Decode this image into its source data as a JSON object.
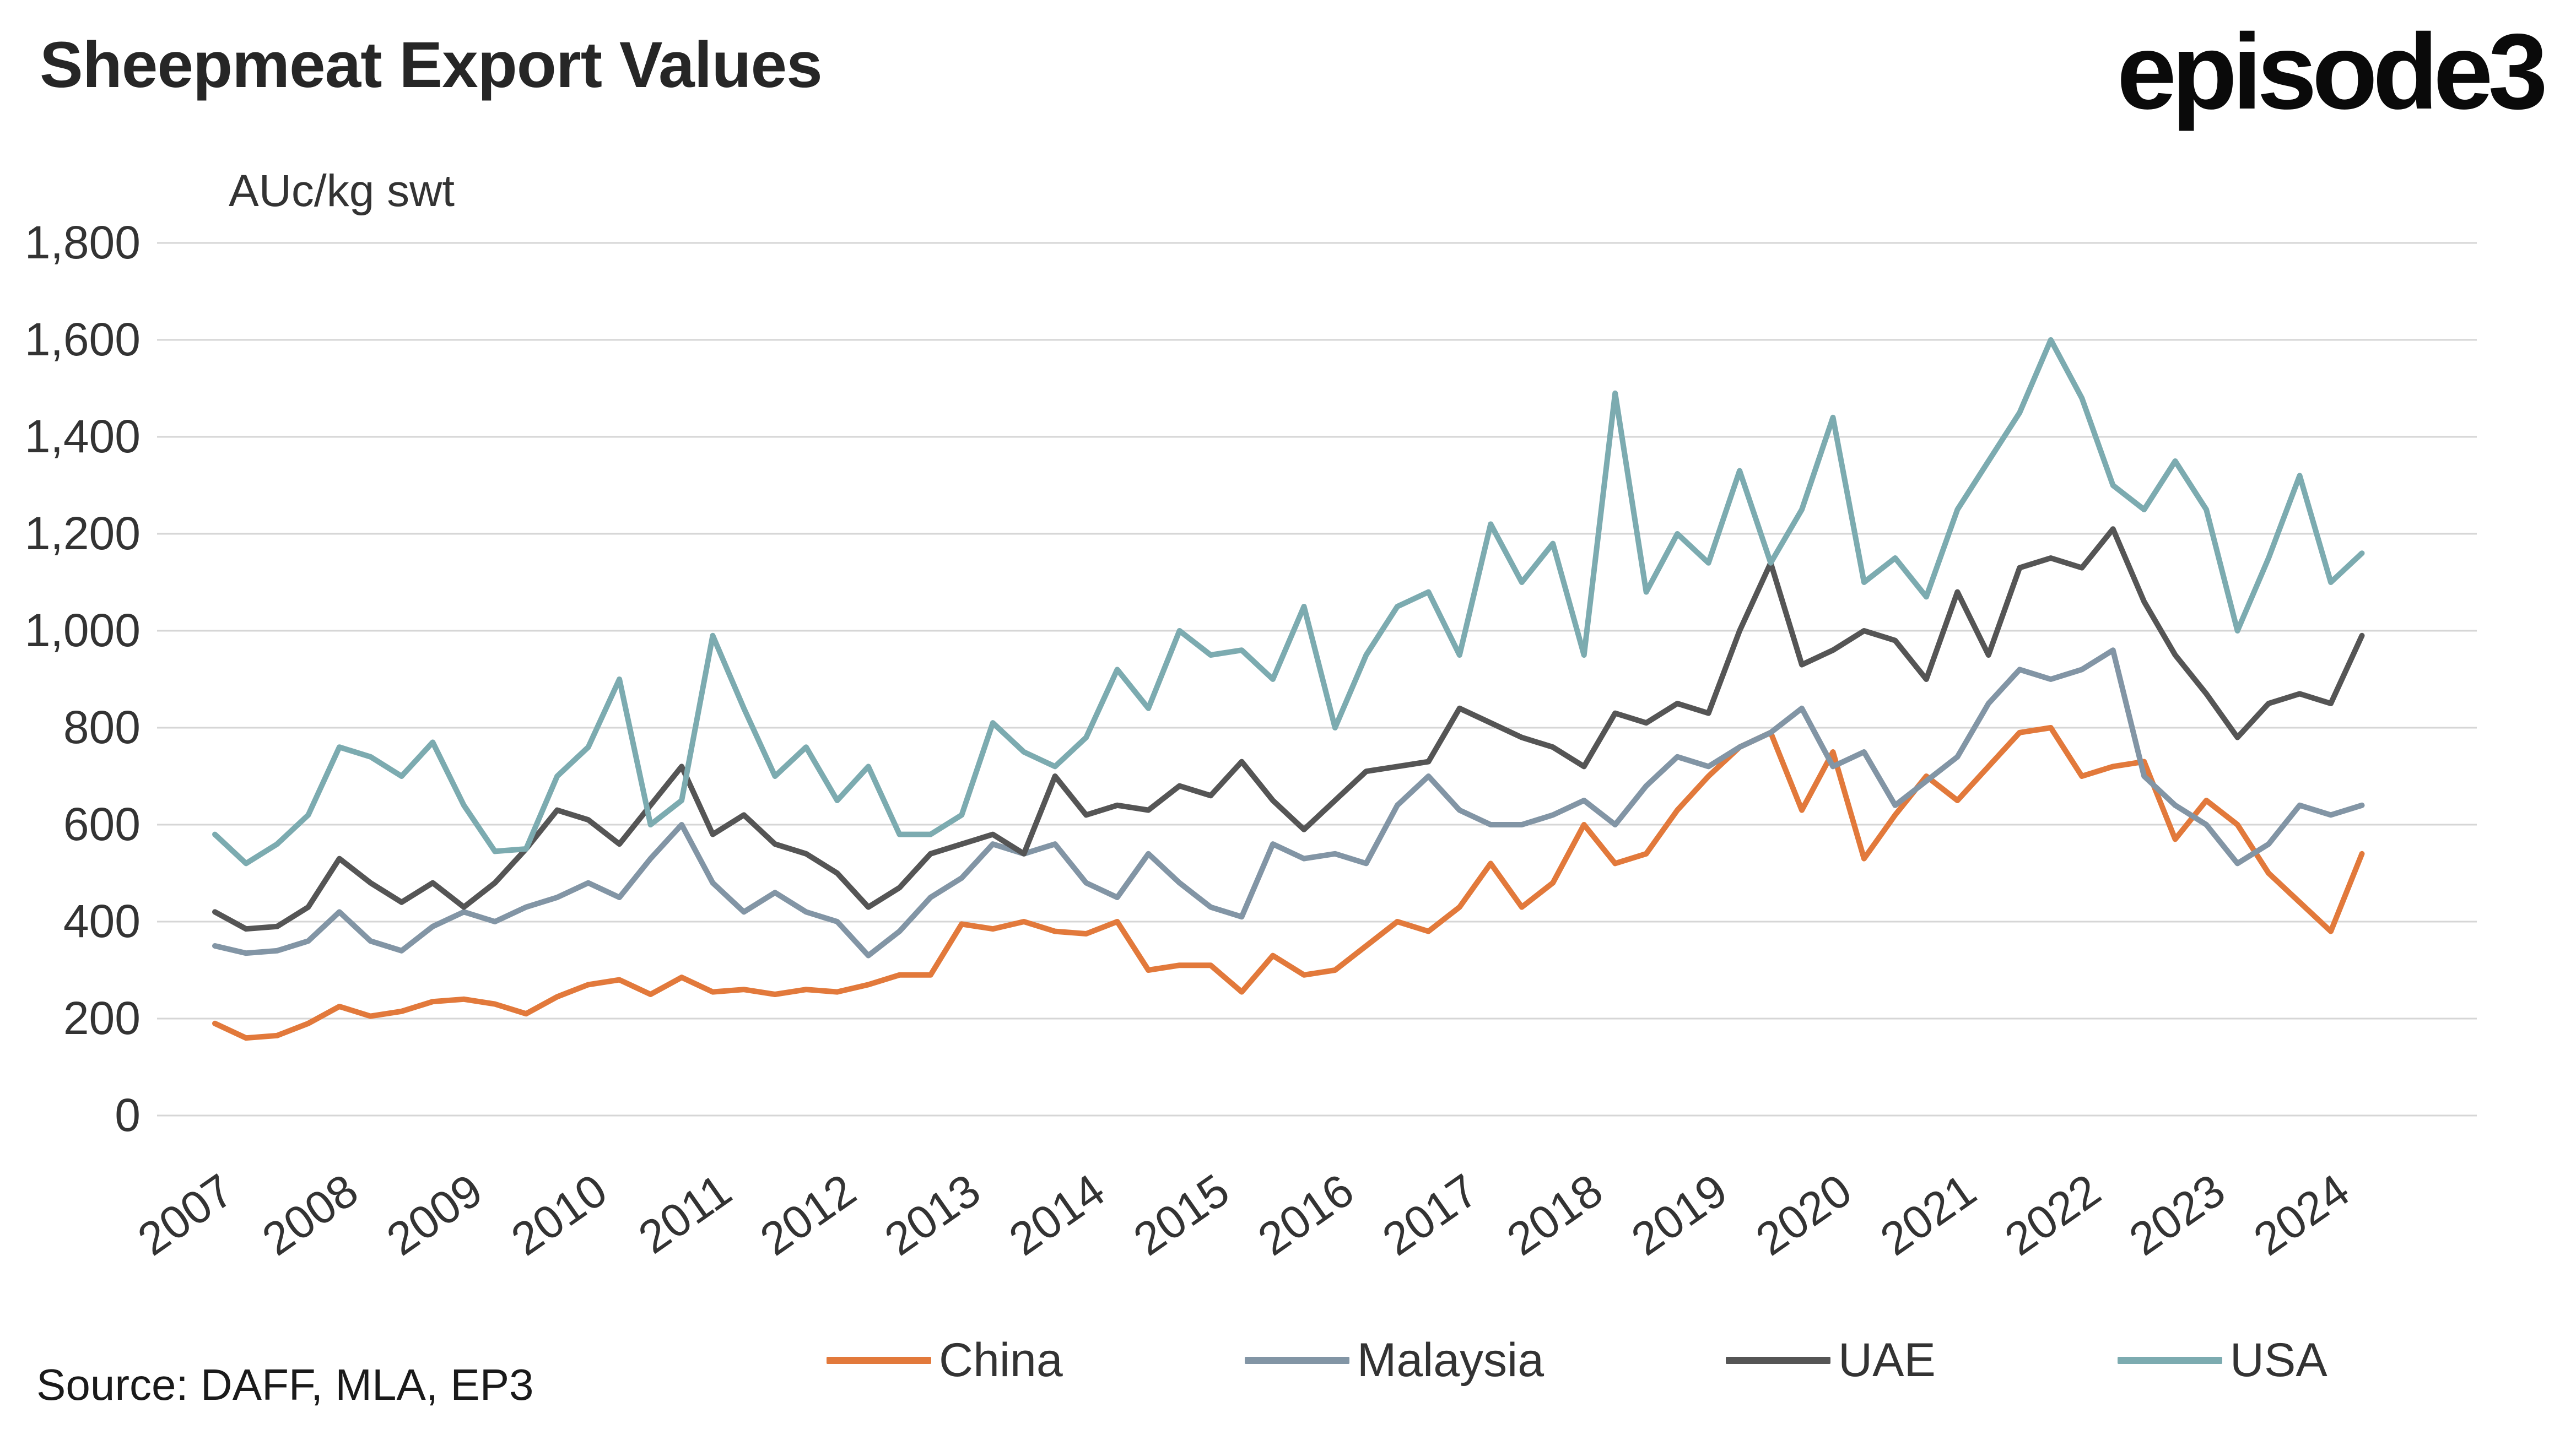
{
  "header": {
    "title": "Sheepmeat Export Values",
    "logo_text": "episode3"
  },
  "footer": {
    "source": "Source: DAFF, MLA, EP3"
  },
  "chart_data": {
    "type": "line",
    "title": "Sheepmeat Export Values",
    "xlabel": "",
    "ylabel": "AUc/kg swt",
    "ylim": [
      0,
      1800
    ],
    "grid": "horizontal",
    "legend_position": "bottom",
    "grid_color": "#d6d6d6",
    "y_ticks": [
      0,
      200,
      400,
      600,
      800,
      1000,
      1200,
      1400,
      1600,
      1800
    ],
    "y_tick_labels": [
      "0",
      "200",
      "400",
      "600",
      "800",
      "1,000",
      "1,200",
      "1,400",
      "1,600",
      "1,800"
    ],
    "x_ticks": [
      2007,
      2008,
      2009,
      2010,
      2011,
      2012,
      2013,
      2014,
      2015,
      2016,
      2017,
      2018,
      2019,
      2020,
      2021,
      2022,
      2023,
      2024
    ],
    "x": [
      2007,
      2007.25,
      2007.5,
      2007.75,
      2008,
      2008.25,
      2008.5,
      2008.75,
      2009,
      2009.25,
      2009.5,
      2009.75,
      2010,
      2010.25,
      2010.5,
      2010.75,
      2011,
      2011.25,
      2011.5,
      2011.75,
      2012,
      2012.25,
      2012.5,
      2012.75,
      2013,
      2013.25,
      2013.5,
      2013.75,
      2014,
      2014.25,
      2014.5,
      2014.75,
      2015,
      2015.25,
      2015.5,
      2015.75,
      2016,
      2016.25,
      2016.5,
      2016.75,
      2017,
      2017.25,
      2017.5,
      2017.75,
      2018,
      2018.25,
      2018.5,
      2018.75,
      2019,
      2019.25,
      2019.5,
      2019.75,
      2020,
      2020.25,
      2020.5,
      2020.75,
      2021,
      2021.25,
      2021.5,
      2021.75,
      2022,
      2022.25,
      2022.5,
      2022.75,
      2023,
      2023.25,
      2023.5,
      2023.75,
      2024,
      2024.25
    ],
    "series": [
      {
        "name": "China",
        "color": "#E2793B",
        "values": [
          190,
          160,
          165,
          190,
          225,
          205,
          215,
          235,
          240,
          230,
          210,
          245,
          270,
          280,
          250,
          285,
          255,
          260,
          250,
          260,
          255,
          270,
          290,
          290,
          395,
          385,
          400,
          380,
          375,
          400,
          300,
          310,
          310,
          255,
          330,
          290,
          300,
          350,
          400,
          380,
          430,
          520,
          430,
          480,
          600,
          520,
          540,
          630,
          700,
          760,
          790,
          630,
          750,
          530,
          620,
          700,
          650,
          720,
          790,
          800,
          700,
          720,
          730,
          570,
          650,
          600,
          500,
          440,
          380,
          540
        ]
      },
      {
        "name": "Malaysia",
        "color": "#8295A5",
        "values": [
          350,
          335,
          340,
          360,
          420,
          360,
          340,
          390,
          420,
          400,
          430,
          450,
          480,
          450,
          530,
          600,
          480,
          420,
          460,
          420,
          400,
          330,
          380,
          450,
          490,
          560,
          540,
          560,
          480,
          450,
          540,
          480,
          430,
          410,
          560,
          530,
          540,
          520,
          640,
          700,
          630,
          600,
          600,
          620,
          650,
          600,
          680,
          740,
          720,
          760,
          790,
          840,
          720,
          750,
          640,
          690,
          740,
          850,
          920,
          900,
          920,
          960,
          700,
          640,
          600,
          520,
          560,
          640,
          620,
          640
        ]
      },
      {
        "name": "UAE",
        "color": "#555555",
        "values": [
          420,
          385,
          390,
          430,
          530,
          480,
          440,
          480,
          430,
          480,
          550,
          630,
          610,
          560,
          640,
          720,
          580,
          620,
          560,
          540,
          500,
          430,
          470,
          540,
          560,
          580,
          540,
          700,
          620,
          640,
          630,
          680,
          660,
          730,
          650,
          590,
          650,
          710,
          720,
          730,
          840,
          810,
          780,
          760,
          720,
          830,
          810,
          850,
          830,
          1000,
          1140,
          930,
          960,
          1000,
          980,
          900,
          1080,
          950,
          1130,
          1150,
          1130,
          1210,
          1060,
          950,
          870,
          780,
          850,
          870,
          850,
          990
        ]
      },
      {
        "name": "USA",
        "color": "#7CABB0",
        "values": [
          580,
          520,
          560,
          620,
          760,
          740,
          700,
          770,
          640,
          545,
          550,
          700,
          760,
          900,
          600,
          650,
          990,
          840,
          700,
          760,
          650,
          720,
          580,
          580,
          620,
          810,
          750,
          720,
          780,
          920,
          840,
          1000,
          950,
          960,
          900,
          1050,
          800,
          950,
          1050,
          1080,
          950,
          1220,
          1100,
          1180,
          950,
          1490,
          1080,
          1200,
          1140,
          1330,
          1140,
          1250,
          1440,
          1100,
          1150,
          1070,
          1250,
          1350,
          1450,
          1600,
          1480,
          1300,
          1250,
          1350,
          1250,
          1000,
          1150,
          1320,
          1100,
          1160
        ]
      }
    ]
  }
}
